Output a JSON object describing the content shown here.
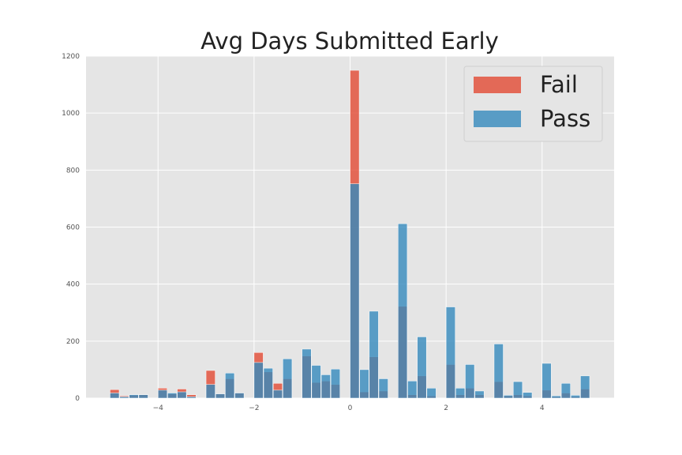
{
  "chart_data": {
    "type": "bar",
    "title": "Avg Days Submitted Early",
    "xlabel": "",
    "ylabel": "",
    "xlim": [
      -5.5,
      5.5
    ],
    "ylim": [
      0,
      1200
    ],
    "grid": true,
    "legend_placement": "top-right",
    "x_ticks": [
      -4,
      -2,
      0,
      2,
      4
    ],
    "x_tick_labels": [
      "−4",
      "−2",
      "0",
      "2",
      "4"
    ],
    "y_ticks": [
      0,
      200,
      400,
      600,
      800,
      1000,
      1200
    ],
    "y_tick_labels": [
      "0",
      "200",
      "400",
      "600",
      "800",
      "1000",
      "1200"
    ],
    "bin_width": 0.2,
    "bins": [
      -5.0,
      -4.8,
      -4.6,
      -4.4,
      -4.0,
      -3.8,
      -3.6,
      -3.4,
      -3.0,
      -2.8,
      -2.6,
      -2.4,
      -2.0,
      -1.8,
      -1.6,
      -1.4,
      -1.0,
      -0.8,
      -0.6,
      -0.4,
      0.0,
      0.2,
      0.4,
      0.6,
      1.0,
      1.2,
      1.4,
      1.6,
      2.0,
      2.2,
      2.4,
      2.6,
      3.0,
      3.2,
      3.4,
      3.6,
      4.0,
      4.2,
      4.4,
      4.6,
      4.8
    ],
    "series": [
      {
        "name": "Fail",
        "color": "#E24A33",
        "values": [
          30,
          8,
          10,
          12,
          35,
          15,
          32,
          12,
          97,
          15,
          68,
          18,
          160,
          92,
          52,
          68,
          148,
          55,
          60,
          48,
          1150,
          22,
          145,
          25,
          322,
          12,
          78,
          8,
          118,
          12,
          35,
          12,
          58,
          8,
          12,
          8,
          28,
          5,
          18,
          5,
          32
        ]
      },
      {
        "name": "Pass",
        "color": "#348ABD",
        "values": [
          18,
          5,
          12,
          12,
          28,
          18,
          22,
          5,
          48,
          15,
          88,
          18,
          125,
          105,
          28,
          138,
          172,
          115,
          82,
          102,
          752,
          100,
          305,
          68,
          612,
          60,
          215,
          35,
          320,
          35,
          118,
          25,
          190,
          10,
          58,
          20,
          122,
          8,
          52,
          10,
          78
        ]
      }
    ]
  }
}
